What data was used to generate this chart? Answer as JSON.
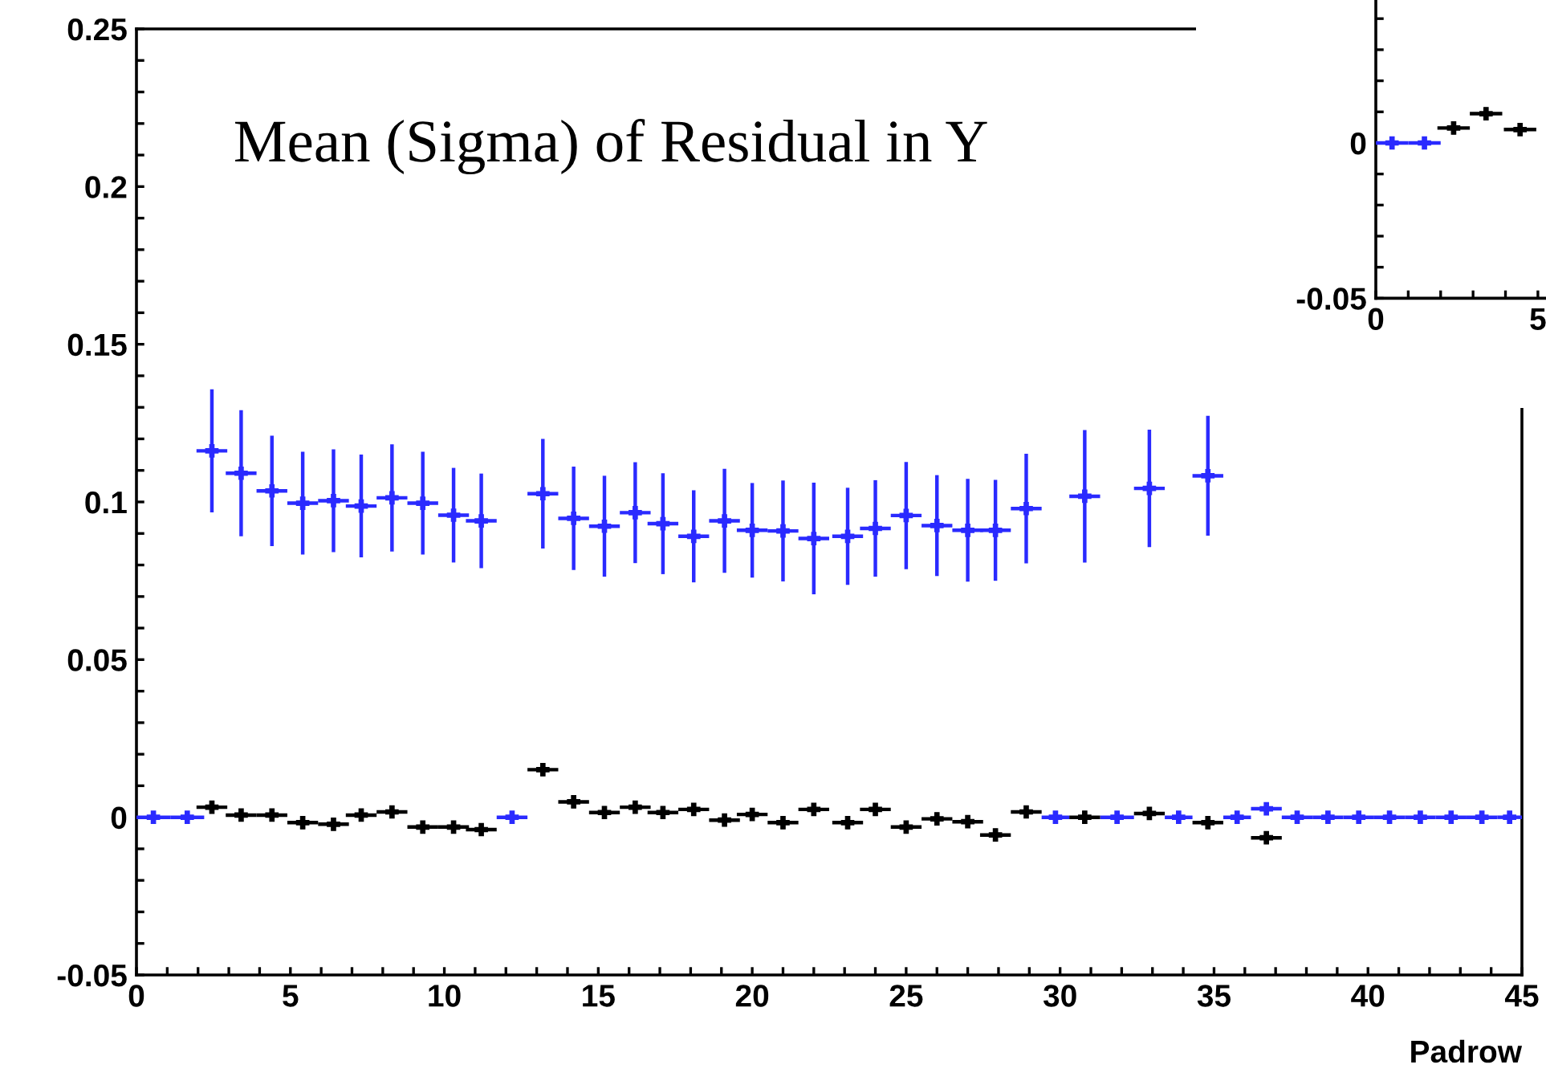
{
  "chart_data": [
    {
      "type": "scatter",
      "title": "Mean (Sigma) of Residual in Y",
      "xlabel": "Padrow",
      "xlim": [
        0,
        45
      ],
      "ylim": [
        -0.05,
        0.25
      ],
      "xticks": [
        0,
        {
          "value": 1,
          "label": null
        },
        {
          "value": 2,
          "label": null
        },
        {
          "value": 3,
          "label": null
        },
        {
          "value": 4,
          "label": null
        },
        5,
        {
          "value": 6,
          "label": null
        },
        {
          "value": 7,
          "label": null
        },
        {
          "value": 8,
          "label": null
        },
        {
          "value": 9,
          "label": null
        },
        10,
        {
          "value": 11,
          "label": null
        },
        {
          "value": 12,
          "label": null
        },
        {
          "value": 13,
          "label": null
        },
        {
          "value": 14,
          "label": null
        },
        15,
        {
          "value": 16,
          "label": null
        },
        {
          "value": 17,
          "label": null
        },
        {
          "value": 18,
          "label": null
        },
        {
          "value": 19,
          "label": null
        },
        20,
        {
          "value": 21,
          "label": null
        },
        {
          "value": 22,
          "label": null
        },
        {
          "value": 23,
          "label": null
        },
        {
          "value": 24,
          "label": null
        },
        25,
        {
          "value": 26,
          "label": null
        },
        {
          "value": 27,
          "label": null
        },
        {
          "value": 28,
          "label": null
        },
        {
          "value": 29,
          "label": null
        },
        30,
        {
          "value": 31,
          "label": null
        },
        {
          "value": 32,
          "label": null
        },
        {
          "value": 33,
          "label": null
        },
        {
          "value": 34,
          "label": null
        },
        35,
        {
          "value": 36,
          "label": null
        },
        {
          "value": 37,
          "label": null
        },
        {
          "value": 38,
          "label": null
        },
        {
          "value": 39,
          "label": null
        },
        40,
        {
          "value": 41,
          "label": null
        },
        {
          "value": 42,
          "label": null
        },
        {
          "value": 43,
          "label": null
        },
        {
          "value": 44,
          "label": null
        },
        45
      ],
      "yticks": [
        -0.05,
        {
          "value": -0.04,
          "label": null
        },
        {
          "value": -0.03,
          "label": null
        },
        {
          "value": -0.02,
          "label": null
        },
        {
          "value": -0.01,
          "label": null
        },
        0,
        {
          "value": 0.01,
          "label": null
        },
        {
          "value": 0.02,
          "label": null
        },
        {
          "value": 0.03,
          "label": null
        },
        {
          "value": 0.04,
          "label": null
        },
        0.05,
        {
          "value": 0.06,
          "label": null
        },
        {
          "value": 0.07,
          "label": null
        },
        {
          "value": 0.08,
          "label": null
        },
        {
          "value": 0.09,
          "label": null
        },
        0.1,
        {
          "value": 0.11,
          "label": null
        },
        {
          "value": 0.12,
          "label": null
        },
        {
          "value": 0.13,
          "label": null
        },
        {
          "value": 0.14,
          "label": null
        },
        0.15,
        {
          "value": 0.16,
          "label": null
        },
        {
          "value": 0.17,
          "label": null
        },
        {
          "value": 0.18,
          "label": null
        },
        {
          "value": 0.19,
          "label": null
        },
        0.2,
        {
          "value": 0.21,
          "label": null
        },
        {
          "value": 0.22,
          "label": null
        },
        {
          "value": 0.23,
          "label": null
        },
        {
          "value": 0.24,
          "label": null
        },
        0.25
      ],
      "marker": "cross",
      "series": [
        {
          "color": "#2a2aff",
          "x": [
            0.55,
            1.65,
            2.45,
            3.4,
            4.4,
            5.4,
            6.4,
            7.3,
            8.3,
            9.3,
            10.3,
            11.2,
            12.2,
            13.2,
            14.2,
            15.2,
            16.2,
            17.1,
            18.1,
            19.1,
            20.0,
            21.0,
            22.0,
            23.1,
            24.0,
            25.0,
            26.0,
            27.0,
            27.9,
            28.9,
            29.85,
            30.8,
            31.85,
            32.9,
            33.85,
            34.8,
            35.75,
            36.7,
            37.7,
            38.7,
            39.7,
            40.7,
            41.7,
            42.7,
            43.7,
            44.6
          ],
          "values": [
            0,
            0,
            0.1162,
            0.1091,
            0.1035,
            0.0996,
            0.1004,
            0.0987,
            0.1013,
            0.0996,
            0.0958,
            0.094,
            0,
            0.1026,
            0.0948,
            0.0923,
            0.0966,
            0.0931,
            0.0891,
            0.094,
            0.091,
            0.0908,
            0.0884,
            0.0891,
            0.0916,
            0.0957,
            0.0925,
            0.091,
            0.091,
            0.0979,
            0,
            0.1018,
            0,
            0.1043,
            0,
            0.1083,
            0,
            0.0027,
            0,
            0,
            0,
            0,
            0,
            0,
            0,
            0
          ],
          "errors": [
            0,
            0,
            0.0195,
            0.02,
            0.0175,
            0.0163,
            0.0163,
            0.0163,
            0.017,
            0.0163,
            0.015,
            0.015,
            0,
            0.0174,
            0.0164,
            0.016,
            0.016,
            0.016,
            0.0146,
            0.0165,
            0.015,
            0.016,
            0.0177,
            0.0154,
            0.0153,
            0.017,
            0.016,
            0.0163,
            0.016,
            0.0174,
            0,
            0.021,
            0,
            0.0186,
            0,
            0.019,
            0,
            0,
            0,
            0,
            0,
            0,
            0,
            0,
            0,
            0
          ],
          "xerrors": [
            0.55,
            0.55,
            0.5,
            0.5,
            0.5,
            0.5,
            0.5,
            0.5,
            0.5,
            0.5,
            0.5,
            0.5,
            0.5,
            0.5,
            0.5,
            0.5,
            0.5,
            0.5,
            0.5,
            0.5,
            0.5,
            0.5,
            0.5,
            0.5,
            0.5,
            0.5,
            0.5,
            0.5,
            0.5,
            0.5,
            0.45,
            0.5,
            0.55,
            0.5,
            0.45,
            0.5,
            0.45,
            0.5,
            0.5,
            0.5,
            0.5,
            0.5,
            0.5,
            0.5,
            0.5,
            0.4
          ]
        },
        {
          "color": "#000000",
          "x": [
            2.45,
            3.4,
            4.4,
            5.4,
            6.4,
            7.3,
            8.3,
            9.3,
            10.3,
            11.2,
            13.2,
            14.2,
            15.2,
            16.2,
            17.1,
            18.1,
            19.1,
            20.0,
            21.0,
            22.0,
            23.1,
            24.0,
            25.0,
            26.0,
            27.0,
            27.9,
            28.9,
            30.8,
            32.9,
            34.8,
            36.7
          ],
          "values": [
            0.0032,
            0.0007,
            0.0007,
            -0.0017,
            -0.0022,
            0.0007,
            0.0017,
            -0.0031,
            -0.0031,
            -0.0039,
            0.0151,
            0.0049,
            0.0015,
            0.0032,
            0.0015,
            0.0025,
            -0.0009,
            0.0009,
            -0.0017,
            0.0025,
            -0.0017,
            0.0025,
            -0.0031,
            -0.0005,
            -0.0014,
            -0.0056,
            0.0017,
            0.0,
            0.0012,
            -0.0017,
            -0.0065
          ],
          "errors": [
            0.002,
            0.002,
            0.002,
            0.002,
            0.002,
            0.002,
            0.002,
            0.002,
            0.002,
            0.002,
            0.002,
            0.002,
            0.002,
            0.002,
            0.002,
            0.002,
            0.002,
            0.002,
            0.002,
            0.002,
            0.002,
            0.002,
            0.002,
            0.002,
            0.002,
            0.002,
            0.002,
            0.002,
            0.002,
            0.002,
            0.002
          ],
          "xerrors": [
            0.5,
            0.5,
            0.5,
            0.5,
            0.5,
            0.5,
            0.5,
            0.5,
            0.5,
            0.5,
            0.5,
            0.5,
            0.5,
            0.5,
            0.5,
            0.5,
            0.5,
            0.5,
            0.5,
            0.5,
            0.5,
            0.5,
            0.5,
            0.5,
            0.5,
            0.5,
            0.5,
            0.5,
            0.5,
            0.5,
            0.5
          ]
        }
      ]
    },
    {
      "type": "scatter",
      "xlim": [
        0,
        5.25
      ],
      "ylim": [
        -0.05,
        0.046
      ],
      "xticks": [
        0,
        {
          "value": 1,
          "label": null
        },
        {
          "value": 2,
          "label": null
        },
        {
          "value": 3,
          "label": null
        },
        {
          "value": 4,
          "label": null
        },
        5
      ],
      "yticks": [
        -0.05,
        {
          "value": -0.04,
          "label": null
        },
        {
          "value": -0.03,
          "label": null
        },
        {
          "value": -0.02,
          "label": null
        },
        {
          "value": -0.01,
          "label": null
        },
        0,
        {
          "value": 0.01,
          "label": null
        },
        {
          "value": 0.02,
          "label": null
        },
        {
          "value": 0.03,
          "label": null
        },
        {
          "value": 0.04,
          "label": null
        }
      ],
      "marker": "cross",
      "series": [
        {
          "color": "#2a2aff",
          "x": [
            0.5,
            1.5
          ],
          "values": [
            0,
            0
          ],
          "errors": [
            0,
            0
          ],
          "xerrors": [
            0.5,
            0.5
          ]
        },
        {
          "color": "#000000",
          "x": [
            2.4,
            3.4,
            4.45
          ],
          "values": [
            0.0048,
            0.0094,
            0.0043
          ],
          "errors": [
            0.002,
            0.002,
            0.002
          ],
          "xerrors": [
            0.5,
            0.5,
            0.5
          ]
        }
      ]
    }
  ]
}
